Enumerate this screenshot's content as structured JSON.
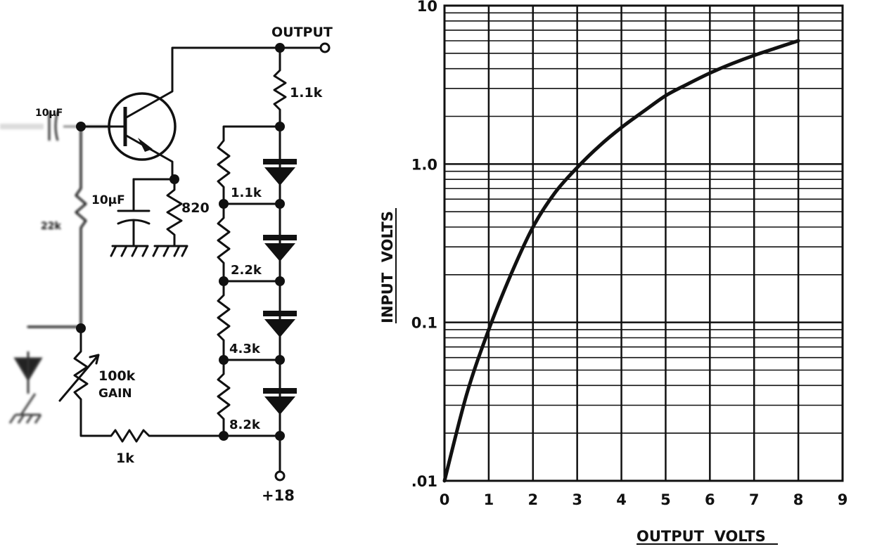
{
  "schematic": {
    "labels": {
      "output": "OUTPUT",
      "supply": "+18",
      "input_cap": "10µF",
      "emitter_cap": "10µF",
      "emitter_res": "820",
      "collector_res": "1.1k",
      "bias_res": "22k",
      "gain_pot": "100k",
      "gain_word": "GAIN",
      "series_res": "1k",
      "ladder": [
        "1.1k",
        "2.2k",
        "4.3k",
        "8.2k"
      ]
    }
  },
  "chart_data": {
    "type": "line",
    "xlabel": "OUTPUT  VOLTS",
    "ylabel": "INPUT  VOLTS",
    "x_ticks": [
      "0",
      "1",
      "2",
      "3",
      "4",
      "5",
      "6",
      "7",
      "8",
      "9"
    ],
    "y_ticks": [
      ".01",
      "0.1",
      "1.0",
      "10"
    ],
    "xlim": [
      0,
      9
    ],
    "ylim": [
      0.01,
      10
    ],
    "y_scale": "log",
    "grid": true,
    "series": [
      {
        "x": [
          0,
          0.5,
          1,
          1.5,
          2,
          2.5,
          3,
          3.5,
          4,
          4.5,
          5,
          5.5,
          6,
          6.5,
          7,
          7.5,
          8
        ],
        "values": [
          0.01,
          0.035,
          0.09,
          0.2,
          0.4,
          0.66,
          0.95,
          1.3,
          1.7,
          2.15,
          2.7,
          3.2,
          3.75,
          4.3,
          4.85,
          5.4,
          6.0
        ]
      }
    ]
  }
}
